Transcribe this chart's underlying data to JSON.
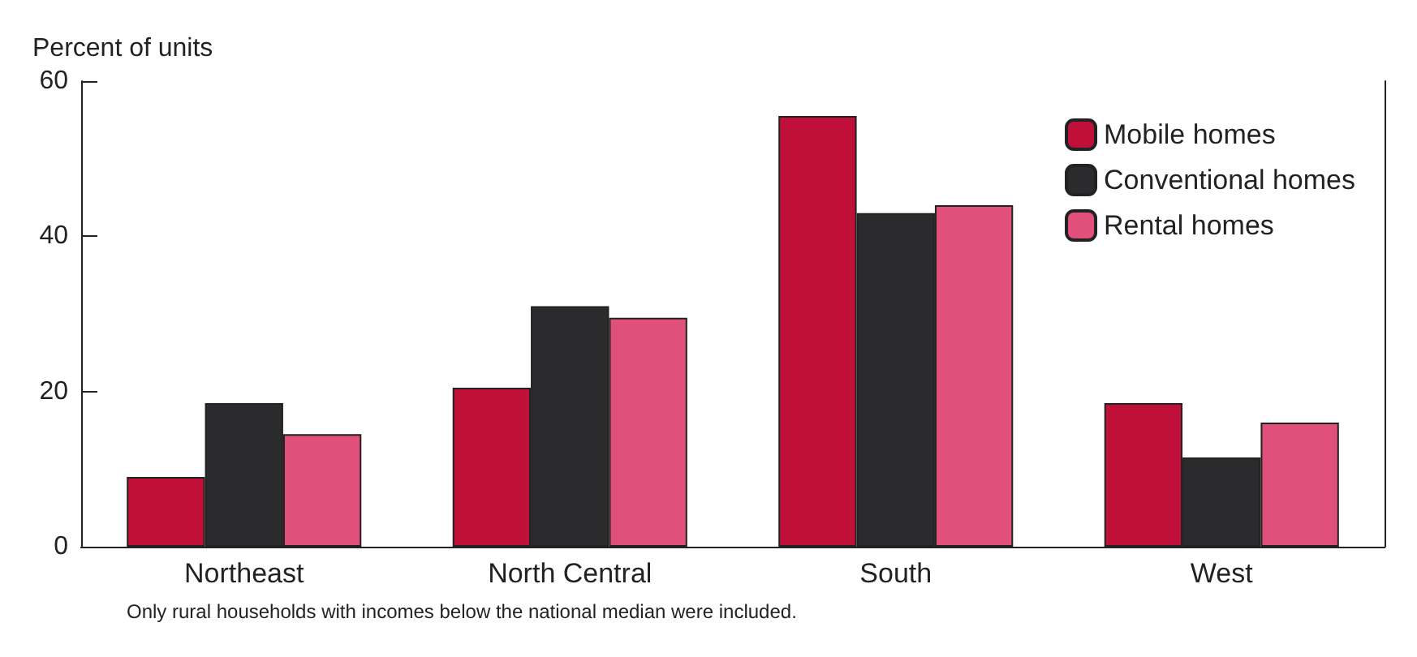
{
  "chart_data": {
    "type": "bar",
    "ylabel": "Percent of units",
    "categories": [
      "Northeast",
      "North Central",
      "South",
      "West"
    ],
    "series": [
      {
        "name": "Mobile homes",
        "color": "#c0103a",
        "values": [
          9,
          20.5,
          55.5,
          18.5
        ]
      },
      {
        "name": "Conventional homes",
        "color": "#2b2b2e",
        "values": [
          18.5,
          31,
          43,
          11.5
        ]
      },
      {
        "name": "Rental homes",
        "color": "#e0507a",
        "values": [
          14.5,
          29.5,
          44,
          16
        ]
      }
    ],
    "ylim": [
      0,
      60
    ],
    "yticks": [
      0,
      20,
      40,
      60
    ],
    "grid": false,
    "legend": "top right",
    "annotations": [
      "Only rural households with incomes below the national median were included."
    ]
  }
}
